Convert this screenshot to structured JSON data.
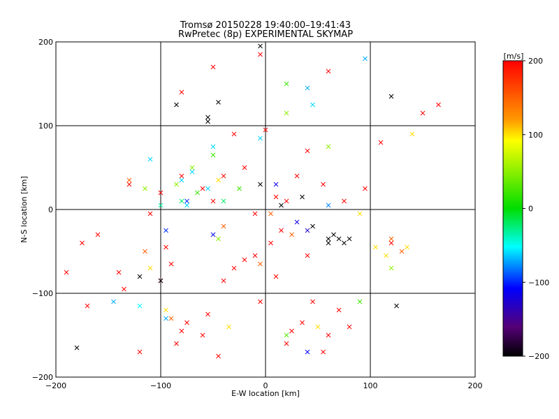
{
  "chart_data": {
    "type": "scatter",
    "title": "Tromsø 20150228 19:40:00–19:41:43",
    "subtitle": "RwPretec (8p) EXPERIMENTAL SKYMAP",
    "xlabel": "E-W location [km]",
    "ylabel": "N-S location [km]",
    "xlim": [
      -200,
      200
    ],
    "ylim": [
      -200,
      200
    ],
    "x_ticks": [
      -200,
      -100,
      0,
      100,
      200
    ],
    "y_ticks": [
      -200,
      -100,
      0,
      100,
      200
    ],
    "x_tick_labels": [
      "−200",
      "−100",
      "0",
      "100",
      "200"
    ],
    "y_tick_labels": [
      "−200",
      "−100",
      "0",
      "100",
      "200"
    ],
    "grid": true,
    "colorbar": {
      "label": "[m/s]",
      "range": [
        -200,
        200
      ],
      "ticks": [
        200,
        100,
        0,
        -100,
        -200
      ],
      "tick_labels": [
        "200",
        "100",
        "0",
        "−100",
        "−200"
      ],
      "colormap": "rainbow (black–purple–blue–cyan–green–yellow–red)"
    },
    "markers": [
      "dot",
      "cross"
    ],
    "series": [
      {
        "marker": "cross",
        "points": [
          [
            -190,
            -75,
            200
          ],
          [
            -170,
            -115,
            200
          ],
          [
            -140,
            -75,
            200
          ],
          [
            -135,
            -95,
            200
          ],
          [
            -120,
            -170,
            200
          ],
          [
            -100,
            -85,
            200
          ],
          [
            -95,
            -45,
            200
          ],
          [
            -90,
            -65,
            200
          ],
          [
            -85,
            -160,
            200
          ],
          [
            -80,
            -145,
            200
          ],
          [
            -75,
            -135,
            200
          ],
          [
            -60,
            -150,
            200
          ],
          [
            -55,
            -125,
            200
          ],
          [
            -45,
            -175,
            200
          ],
          [
            -40,
            -85,
            200
          ],
          [
            -30,
            -70,
            200
          ],
          [
            -20,
            -60,
            200
          ],
          [
            -10,
            -55,
            200
          ],
          [
            -5,
            -110,
            200
          ],
          [
            5,
            -40,
            200
          ],
          [
            10,
            -80,
            200
          ],
          [
            15,
            -25,
            200
          ],
          [
            20,
            -160,
            200
          ],
          [
            25,
            -145,
            200
          ],
          [
            35,
            -135,
            200
          ],
          [
            45,
            -110,
            200
          ],
          [
            55,
            -170,
            200
          ],
          [
            60,
            -150,
            200
          ],
          [
            70,
            -120,
            200
          ],
          [
            80,
            -140,
            200
          ],
          [
            -130,
            30,
            200
          ],
          [
            -100,
            20,
            200
          ],
          [
            -80,
            40,
            200
          ],
          [
            -60,
            25,
            200
          ],
          [
            -50,
            10,
            200
          ],
          [
            -40,
            40,
            200
          ],
          [
            -20,
            50,
            200
          ],
          [
            0,
            95,
            200
          ],
          [
            10,
            15,
            200
          ],
          [
            30,
            40,
            200
          ],
          [
            40,
            70,
            200
          ],
          [
            55,
            30,
            200
          ],
          [
            75,
            10,
            200
          ],
          [
            95,
            25,
            200
          ],
          [
            110,
            80,
            200
          ],
          [
            -175,
            -40,
            200
          ],
          [
            -160,
            -30,
            200
          ],
          [
            -110,
            -5,
            200
          ],
          [
            150,
            115,
            200
          ],
          [
            165,
            125,
            200
          ],
          [
            -80,
            140,
            200
          ],
          [
            -50,
            170,
            200
          ],
          [
            -5,
            185,
            200
          ],
          [
            60,
            165,
            200
          ],
          [
            120,
            -40,
            200
          ],
          [
            -30,
            90,
            200
          ],
          [
            -10,
            -5,
            200
          ],
          [
            -50,
            -30,
            200
          ],
          [
            20,
            10,
            200
          ],
          [
            40,
            -55,
            200
          ],
          [
            -115,
            -50,
            150
          ],
          [
            -130,
            35,
            150
          ],
          [
            -90,
            -130,
            150
          ],
          [
            5,
            -5,
            150
          ],
          [
            25,
            -30,
            150
          ],
          [
            -5,
            -65,
            150
          ],
          [
            -40,
            -20,
            150
          ],
          [
            130,
            -50,
            150
          ],
          [
            120,
            -35,
            150
          ],
          [
            90,
            -5,
            100
          ],
          [
            105,
            -45,
            100
          ],
          [
            115,
            -55,
            100
          ],
          [
            135,
            -45,
            100
          ],
          [
            140,
            90,
            100
          ],
          [
            -110,
            -70,
            100
          ],
          [
            50,
            -140,
            100
          ],
          [
            -35,
            -140,
            100
          ],
          [
            -45,
            35,
            100
          ],
          [
            -95,
            -120,
            100
          ],
          [
            -85,
            30,
            50
          ],
          [
            -70,
            50,
            50
          ],
          [
            20,
            115,
            50
          ],
          [
            60,
            75,
            50
          ],
          [
            120,
            -70,
            50
          ],
          [
            -45,
            -35,
            50
          ],
          [
            -115,
            25,
            50
          ],
          [
            20,
            -150,
            30
          ],
          [
            -50,
            65,
            20
          ],
          [
            -25,
            25,
            20
          ],
          [
            -65,
            20,
            20
          ],
          [
            20,
            150,
            20
          ],
          [
            90,
            -110,
            20
          ],
          [
            -80,
            10,
            -20
          ],
          [
            -40,
            10,
            -20
          ],
          [
            -100,
            5,
            -30
          ],
          [
            -120,
            -115,
            -50
          ],
          [
            -80,
            35,
            -60
          ],
          [
            -70,
            45,
            -60
          ],
          [
            -5,
            85,
            -60
          ],
          [
            45,
            125,
            -60
          ],
          [
            -110,
            60,
            -60
          ],
          [
            -50,
            75,
            -60
          ],
          [
            -75,
            5,
            -60
          ],
          [
            -55,
            25,
            -60
          ],
          [
            40,
            145,
            -70
          ],
          [
            -145,
            -110,
            -70
          ],
          [
            95,
            180,
            -70
          ],
          [
            -95,
            -130,
            -70
          ],
          [
            60,
            5,
            -80
          ],
          [
            -95,
            -25,
            -100
          ],
          [
            40,
            -170,
            -110
          ],
          [
            -75,
            10,
            -100
          ],
          [
            -50,
            -30,
            -100
          ],
          [
            10,
            30,
            -120
          ],
          [
            30,
            -15,
            -120
          ],
          [
            40,
            -25,
            -130
          ],
          [
            -180,
            -165,
            -200
          ],
          [
            -120,
            -80,
            -200
          ],
          [
            -100,
            -85,
            -200
          ],
          [
            -55,
            110,
            -200
          ],
          [
            -55,
            105,
            -200
          ],
          [
            -85,
            125,
            -200
          ],
          [
            -45,
            128,
            -200
          ],
          [
            -5,
            30,
            -200
          ],
          [
            15,
            5,
            -200
          ],
          [
            35,
            15,
            -200
          ],
          [
            45,
            -20,
            -200
          ],
          [
            60,
            -35,
            -200
          ],
          [
            65,
            -30,
            -200
          ],
          [
            70,
            -35,
            -200
          ],
          [
            75,
            -40,
            -200
          ],
          [
            80,
            -35,
            -200
          ],
          [
            60,
            -40,
            -200
          ],
          [
            125,
            -115,
            -200
          ],
          [
            120,
            135,
            -200
          ],
          [
            -5,
            195,
            -200
          ]
        ]
      }
    ]
  }
}
